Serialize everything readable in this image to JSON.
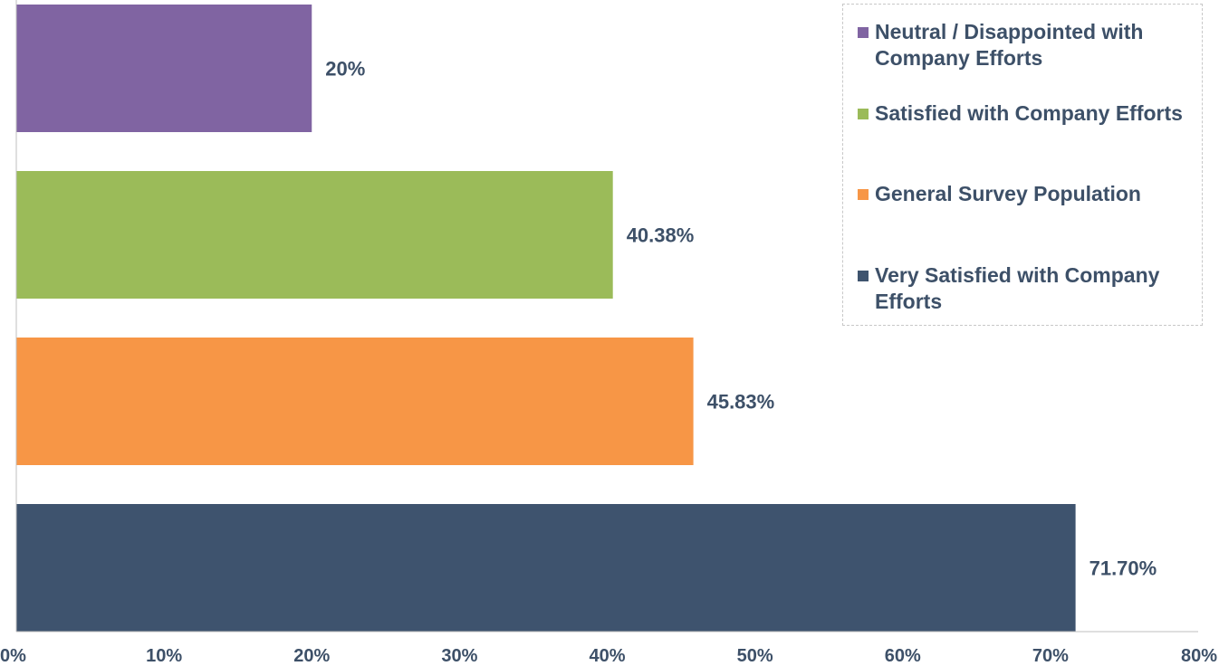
{
  "chart_data": {
    "type": "bar",
    "orientation": "horizontal",
    "categories": [
      "Neutral / Disappointed with Company Efforts",
      "Satisfied with Company Efforts",
      "General Survey Population",
      "Very Satisfied with Company Efforts"
    ],
    "values": [
      20,
      40.38,
      45.83,
      71.7
    ],
    "value_labels": [
      "20%",
      "40.38%",
      "45.83%",
      "71.70%"
    ],
    "colors": [
      "#8064a2",
      "#9bbb59",
      "#f79646",
      "#3e536e"
    ],
    "xlim": [
      0,
      80
    ],
    "xticks": [
      "0%",
      "10%",
      "20%",
      "30%",
      "40%",
      "50%",
      "60%",
      "70%",
      "80%"
    ],
    "grid": false,
    "legend_position": "top-right",
    "title": "",
    "xlabel": "",
    "ylabel": ""
  }
}
